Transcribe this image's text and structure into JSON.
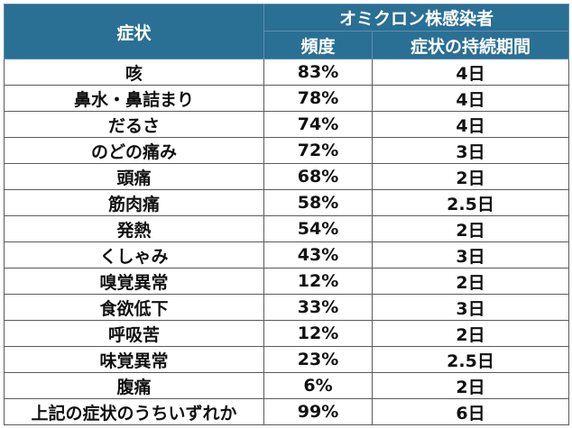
{
  "table": {
    "header": {
      "symptom": "症状",
      "group": "オミクロン株感染者",
      "frequency": "頻度",
      "duration": "症状の持続期間"
    },
    "rows": [
      {
        "symptom": "咳",
        "frequency": "83%",
        "duration": "4日"
      },
      {
        "symptom": "鼻水・鼻詰まり",
        "frequency": "78%",
        "duration": "4日"
      },
      {
        "symptom": "だるさ",
        "frequency": "74%",
        "duration": "4日"
      },
      {
        "symptom": "のどの痛み",
        "frequency": "72%",
        "duration": "3日"
      },
      {
        "symptom": "頭痛",
        "frequency": "68%",
        "duration": "2日"
      },
      {
        "symptom": "筋肉痛",
        "frequency": "58%",
        "duration": "2.5日"
      },
      {
        "symptom": "発熱",
        "frequency": "54%",
        "duration": "2日"
      },
      {
        "symptom": "くしゃみ",
        "frequency": "43%",
        "duration": "3日"
      },
      {
        "symptom": "嗅覚異常",
        "frequency": "12%",
        "duration": "2日"
      },
      {
        "symptom": "食欲低下",
        "frequency": "33%",
        "duration": "3日"
      },
      {
        "symptom": "呼吸苦",
        "frequency": "12%",
        "duration": "2日"
      },
      {
        "symptom": "味覚異常",
        "frequency": "23%",
        "duration": "2.5日"
      },
      {
        "symptom": "腹痛",
        "frequency": "6%",
        "duration": "2日"
      },
      {
        "symptom": "上記の症状のうちいずれか",
        "frequency": "99%",
        "duration": "6日"
      }
    ]
  }
}
